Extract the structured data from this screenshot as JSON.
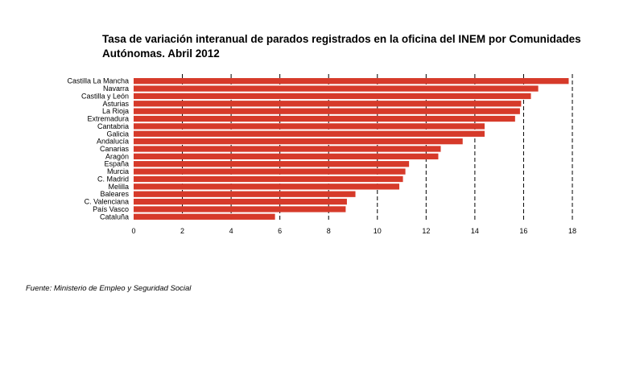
{
  "chart_data": {
    "type": "bar",
    "orientation": "horizontal",
    "title": "Tasa de variación interanual de parados registrados en la oficina del INEM por Comunidades Autónomas. Abril 2012",
    "title_lines": [
      "Tasa de variación interanual de parados registrados en la oficina del INEM por Comunidades",
      "Autónomas. Abril 2012"
    ],
    "categories": [
      "Castilla La Mancha",
      "Navarra",
      "Castilla y León",
      "Asturias",
      "La Rioja",
      "Extremadura",
      "Cantabria",
      "Galicia",
      "Andalucía",
      "Canarias",
      "Aragón",
      "España",
      "Murcia",
      "C. Madrid",
      "Melilla",
      "Baleares",
      "C. Valenciana",
      "País Vasco",
      "Cataluña"
    ],
    "values": [
      17.85,
      16.6,
      16.3,
      15.9,
      15.85,
      15.65,
      14.4,
      14.4,
      13.5,
      12.6,
      12.5,
      11.3,
      11.15,
      11.05,
      10.9,
      9.1,
      8.75,
      8.7,
      5.8
    ],
    "xlim": [
      0,
      18
    ],
    "xticks": [
      0,
      2,
      4,
      6,
      8,
      10,
      12,
      14,
      16,
      18
    ],
    "grid": "vertical dashed",
    "bar_color": "#d63a2a",
    "xlabel": "",
    "ylabel": ""
  },
  "source": "Fuente: Ministerio de Empleo y Seguridad Social"
}
